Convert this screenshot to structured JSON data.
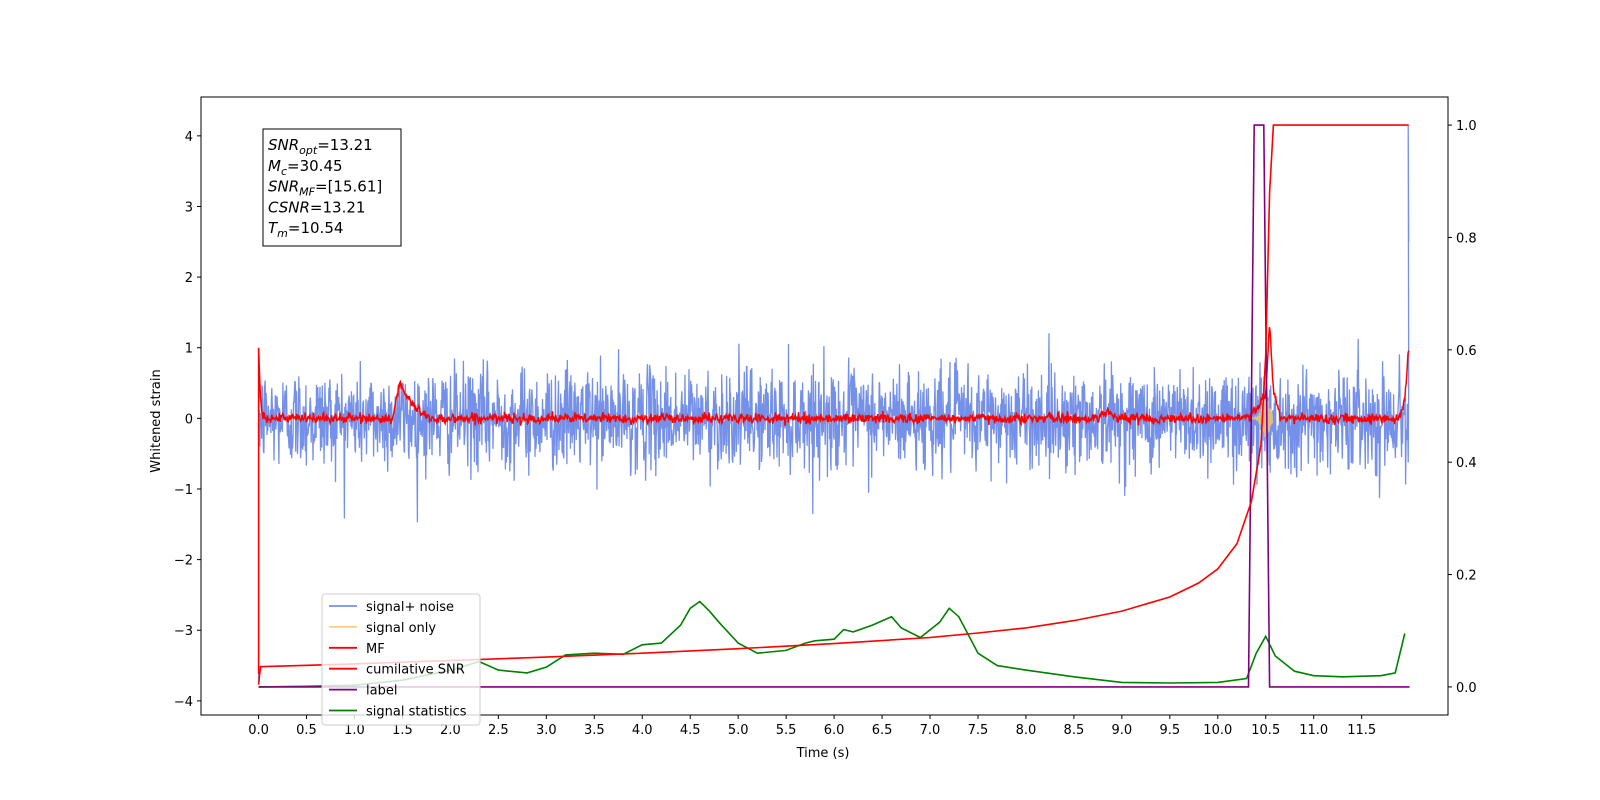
{
  "chart_data": {
    "type": "line",
    "xlabel": "Time (s)",
    "ylabel": "Whitened strain",
    "xlim": [
      -0.6,
      12.4
    ],
    "ylim": [
      -4.2,
      4.55
    ],
    "y2lim": [
      -0.05,
      1.05
    ],
    "x_ticks": [
      "0.0",
      "0.5",
      "1.0",
      "1.5",
      "2.0",
      "2.5",
      "3.0",
      "3.5",
      "4.0",
      "4.5",
      "5.0",
      "5.5",
      "6.0",
      "6.5",
      "7.0",
      "7.5",
      "8.0",
      "8.5",
      "9.0",
      "9.5",
      "10.0",
      "10.5",
      "11.0",
      "11.5"
    ],
    "y_ticks": [
      "−4",
      "−3",
      "−2",
      "−1",
      "0",
      "1",
      "2",
      "3",
      "4"
    ],
    "y2_ticks": [
      "0.0",
      "0.2",
      "0.4",
      "0.6",
      "0.8",
      "1.0"
    ],
    "grid": false,
    "legend_position": "lower-left",
    "annotation": {
      "lines": [
        {
          "sym": "SNR",
          "sub": "opt",
          "val": "=13.21"
        },
        {
          "sym": "M",
          "sub": "c",
          "val": "=30.45"
        },
        {
          "sym": "SNR",
          "sub": "MF",
          "val": "=[15.61]"
        },
        {
          "sym": "CSNR",
          "sub": "",
          "val": "=13.21"
        },
        {
          "sym": "T",
          "sub": "m",
          "val": "=10.54"
        }
      ]
    },
    "series": [
      {
        "name": "signal+ noise",
        "color": "#7590e8",
        "axis": "left",
        "description_values": {
          "x_range": [
            0.0,
            11.99
          ],
          "noise_std": 0.45,
          "approx_range": [
            -1.5,
            1.45
          ],
          "end_spike": [
            2.5,
            4.15
          ]
        }
      },
      {
        "name": "signal only",
        "color": "#f5c96a",
        "axis": "left",
        "x": [
          0.0,
          10.0,
          10.3,
          10.45,
          10.54,
          10.6,
          12.0
        ],
        "y": [
          0.0,
          0.0,
          0.05,
          0.2,
          0.0,
          0.0,
          0.0
        ]
      },
      {
        "name": "MF",
        "color": "#ff0000",
        "axis": "left",
        "x": [
          0.0,
          0.02,
          0.05,
          0.1,
          1.4,
          1.47,
          1.52,
          1.6,
          1.7,
          1.8,
          8.75,
          8.85,
          8.95,
          10.3,
          10.5,
          10.54,
          10.58,
          10.65,
          11.9,
          11.95,
          11.99
        ],
        "y": [
          1.0,
          0.3,
          0.05,
          0.0,
          0.0,
          0.5,
          0.35,
          0.2,
          0.08,
          0.0,
          0.0,
          0.12,
          0.0,
          0.0,
          0.3,
          1.35,
          0.4,
          0.0,
          0.0,
          0.3,
          0.98
        ]
      },
      {
        "name": "cumilative SNR",
        "color": "#ff0000",
        "axis": "right",
        "x": [
          0.0,
          0.02,
          1.0,
          2.0,
          3.0,
          4.0,
          5.0,
          6.0,
          7.0,
          7.5,
          8.0,
          8.5,
          9.0,
          9.5,
          9.8,
          10.0,
          10.2,
          10.35,
          10.45,
          10.5,
          10.54,
          10.58,
          11.0,
          11.5,
          11.99
        ],
        "y": [
          0.004,
          0.036,
          0.041,
          0.047,
          0.053,
          0.06,
          0.068,
          0.077,
          0.088,
          0.096,
          0.105,
          0.118,
          0.135,
          0.16,
          0.185,
          0.21,
          0.255,
          0.33,
          0.43,
          0.59,
          0.88,
          1.0,
          1.0,
          1.0,
          1.0
        ]
      },
      {
        "name": "label",
        "color": "#800080",
        "axis": "right",
        "x": [
          0.0,
          10.32,
          10.38,
          10.48,
          10.54,
          12.0
        ],
        "y": [
          0.0,
          0.0,
          1.0,
          1.0,
          0.0,
          0.0
        ]
      },
      {
        "name": "signal statistics",
        "color": "#008000",
        "axis": "right",
        "x": [
          0.0,
          0.5,
          1.0,
          1.5,
          2.0,
          2.3,
          2.5,
          2.8,
          3.0,
          3.2,
          3.5,
          3.8,
          4.0,
          4.2,
          4.4,
          4.5,
          4.6,
          4.7,
          4.8,
          5.0,
          5.2,
          5.5,
          5.7,
          5.8,
          6.0,
          6.1,
          6.2,
          6.4,
          6.6,
          6.7,
          6.9,
          7.1,
          7.2,
          7.3,
          7.5,
          7.7,
          8.0,
          8.5,
          9.0,
          9.5,
          10.0,
          10.3,
          10.4,
          10.5,
          10.6,
          10.8,
          11.0,
          11.3,
          11.7,
          11.85,
          11.95
        ],
        "y": [
          0.0,
          0.001,
          0.003,
          0.012,
          0.03,
          0.045,
          0.03,
          0.025,
          0.035,
          0.057,
          0.06,
          0.058,
          0.075,
          0.078,
          0.11,
          0.14,
          0.152,
          0.135,
          0.115,
          0.078,
          0.06,
          0.065,
          0.078,
          0.082,
          0.085,
          0.102,
          0.098,
          0.11,
          0.125,
          0.105,
          0.088,
          0.115,
          0.14,
          0.125,
          0.06,
          0.038,
          0.03,
          0.018,
          0.008,
          0.007,
          0.008,
          0.015,
          0.06,
          0.09,
          0.055,
          0.028,
          0.02,
          0.018,
          0.02,
          0.025,
          0.095
        ]
      }
    ]
  }
}
